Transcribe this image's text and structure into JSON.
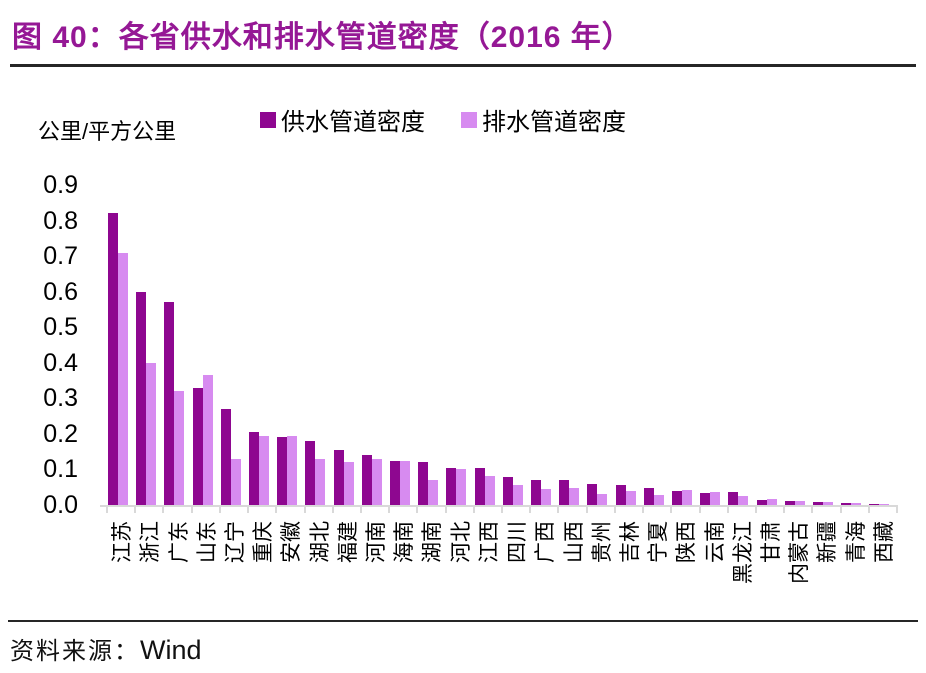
{
  "header": {
    "title": "图 40：各省供水和排水管道密度（2016 年）"
  },
  "legend": {
    "items": [
      {
        "label": "供水管道密度",
        "color": "#8E0790"
      },
      {
        "label": "排水管道密度",
        "color": "#D78BF0"
      }
    ]
  },
  "axes": {
    "unit_label": "公里/平方公里",
    "yticks": [
      "0.9",
      "0.8",
      "0.7",
      "0.6",
      "0.5",
      "0.4",
      "0.3",
      "0.2",
      "0.1",
      "0.0"
    ]
  },
  "source": {
    "label": "资料来源：",
    "value": "Wind"
  },
  "colors": {
    "title": "#951895",
    "supply": "#8E0790",
    "drain": "#D78BF0",
    "axis": "#D9D9D9",
    "rule": "#262626"
  },
  "chart_data": {
    "type": "bar",
    "title": "各省供水和排水管道密度（2016年）",
    "ylabel": "公里/平方公里",
    "ylim": [
      0,
      0.9
    ],
    "ytick_step": 0.1,
    "grid": false,
    "legend_position": "top",
    "categories": [
      "江苏",
      "浙江",
      "广东",
      "山东",
      "辽宁",
      "重庆",
      "安徽",
      "湖北",
      "福建",
      "河南",
      "海南",
      "湖南",
      "河北",
      "江西",
      "四川",
      "广西",
      "山西",
      "贵州",
      "吉林",
      "宁夏",
      "陕西",
      "云南",
      "黑龙江",
      "甘肃",
      "内蒙古",
      "新疆",
      "青海",
      "西藏"
    ],
    "series": [
      {
        "name": "供水管道密度",
        "color": "#8E0790",
        "values": [
          0.82,
          0.6,
          0.57,
          0.33,
          0.27,
          0.205,
          0.19,
          0.18,
          0.155,
          0.14,
          0.125,
          0.12,
          0.105,
          0.105,
          0.08,
          0.07,
          0.07,
          0.06,
          0.055,
          0.047,
          0.04,
          0.035,
          0.036,
          0.015,
          0.01,
          0.008,
          0.005,
          0.002
        ]
      },
      {
        "name": "排水管道密度",
        "color": "#D78BF0",
        "values": [
          0.71,
          0.4,
          0.32,
          0.365,
          0.13,
          0.195,
          0.195,
          0.13,
          0.12,
          0.13,
          0.125,
          0.07,
          0.1,
          0.082,
          0.055,
          0.045,
          0.048,
          0.03,
          0.04,
          0.028,
          0.042,
          0.036,
          0.024,
          0.016,
          0.012,
          0.009,
          0.005,
          0.003
        ]
      }
    ]
  }
}
